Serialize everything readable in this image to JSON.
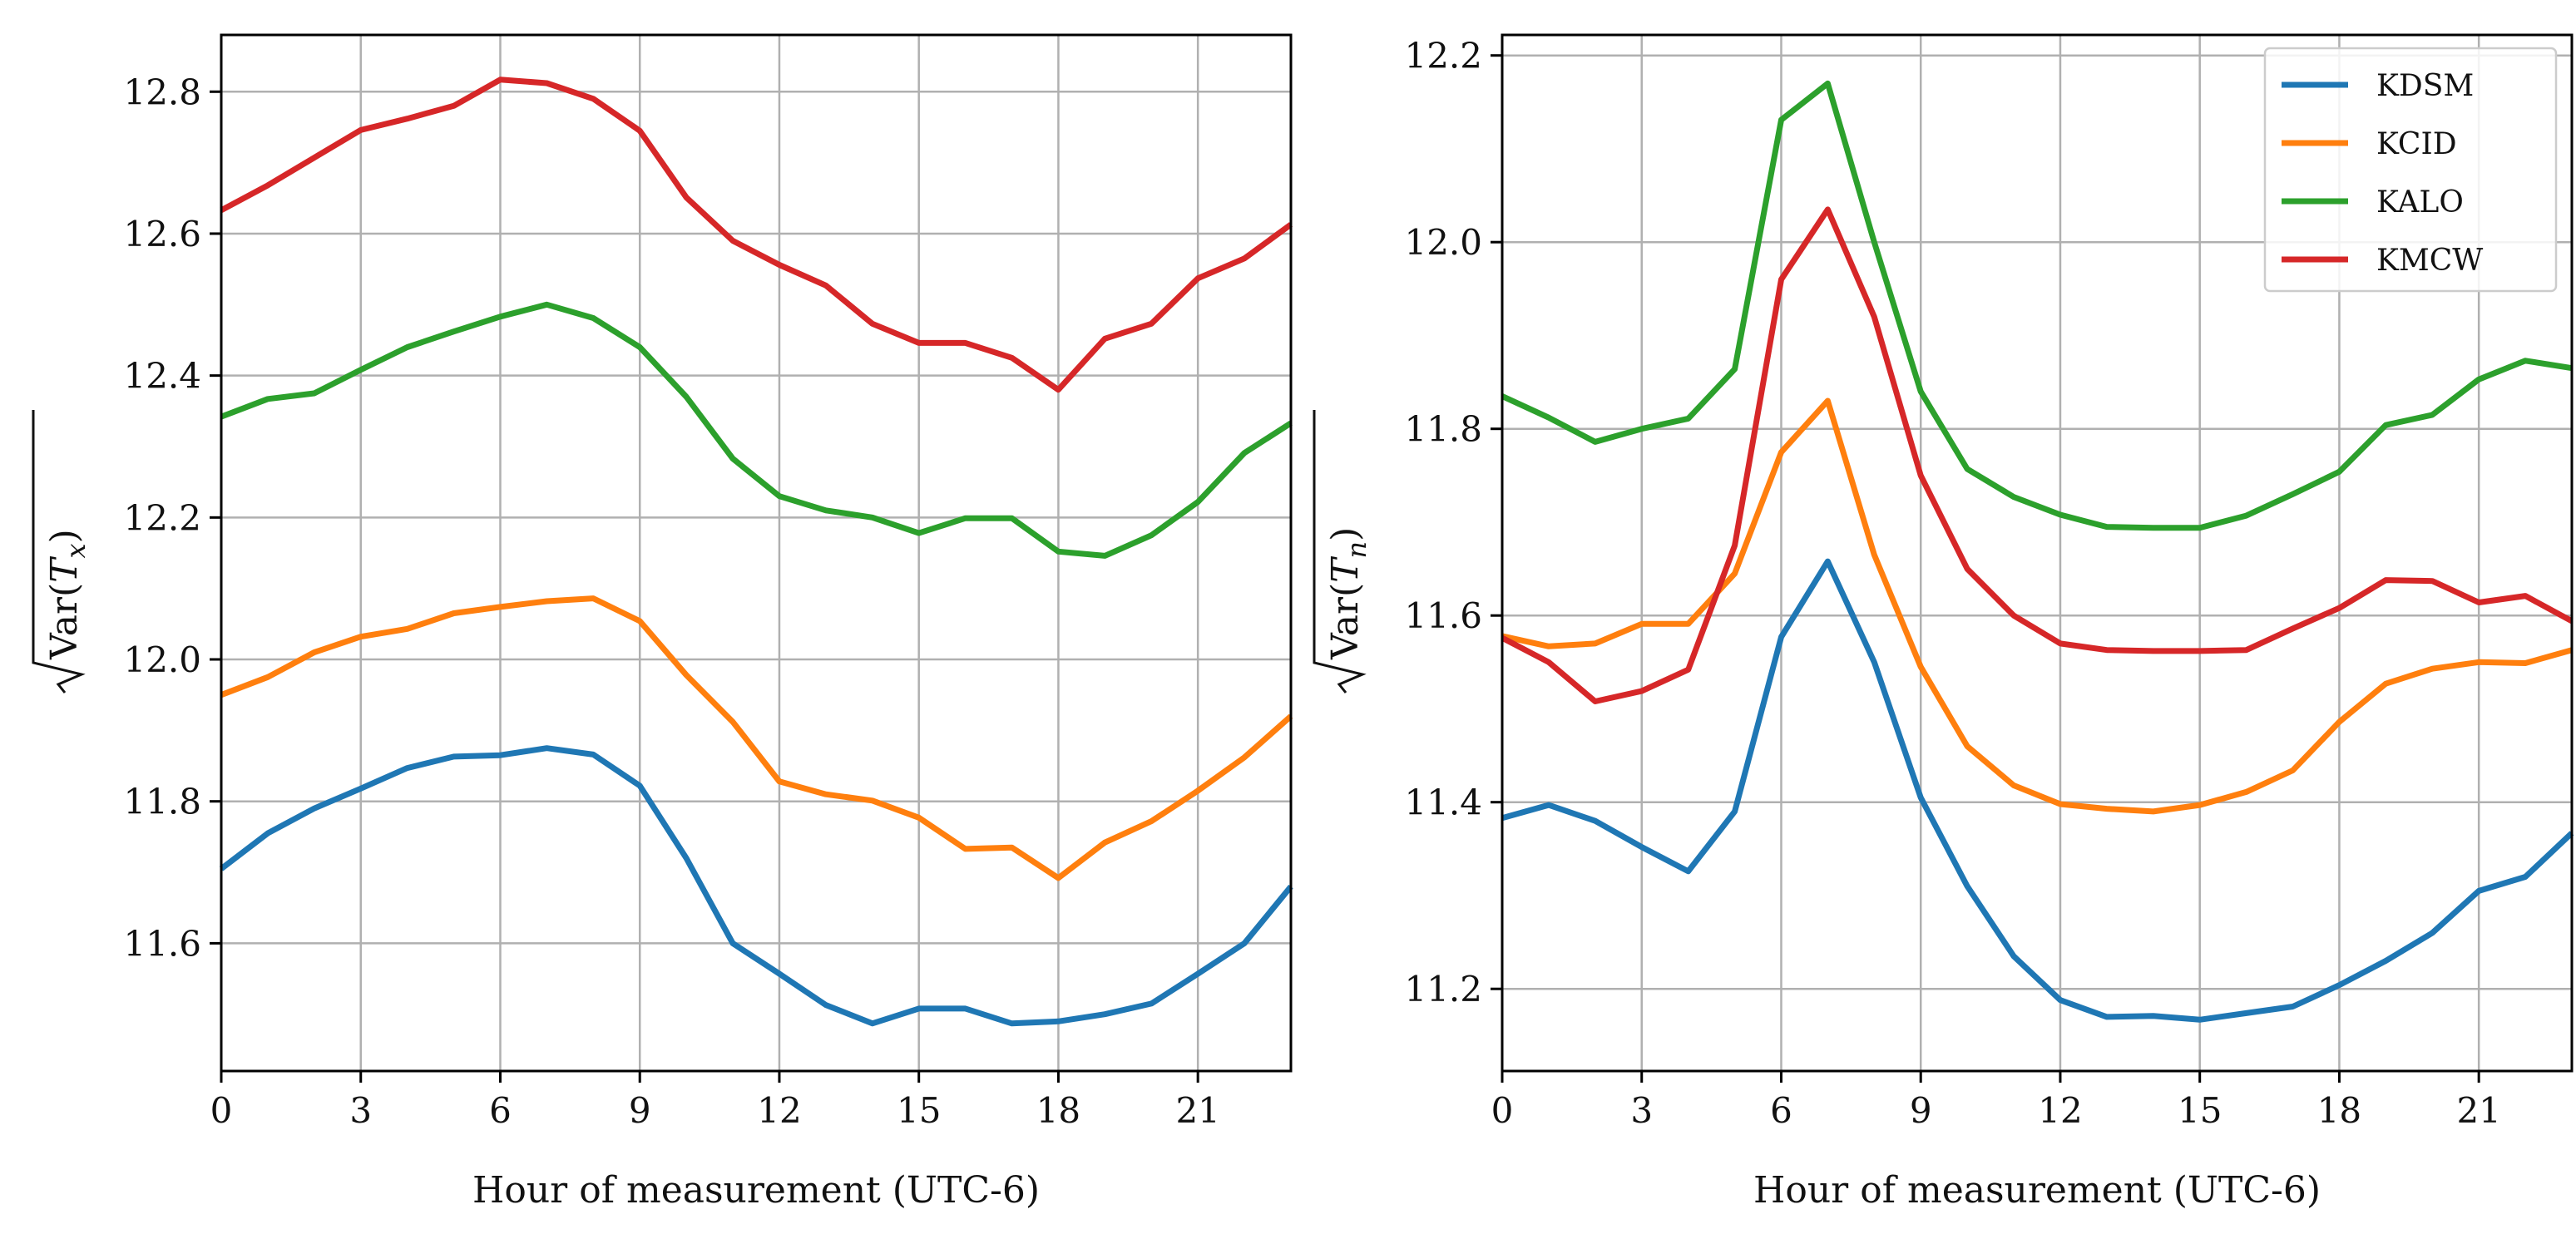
{
  "chart_data": [
    {
      "type": "line",
      "xlabel": "Hour of measurement (UTC-6)",
      "ylabel": {
        "radicand_prefix": "Var(",
        "var": "T",
        "sub": "x",
        "suffix": ")"
      },
      "xlim": [
        0,
        23
      ],
      "ylim": [
        11.42,
        12.88
      ],
      "xticks": [
        0,
        3,
        6,
        9,
        12,
        15,
        18,
        21
      ],
      "yticks": [
        11.6,
        11.8,
        12.0,
        12.2,
        12.4,
        12.6,
        12.8
      ],
      "ytick_labels": [
        "11.6",
        "11.8",
        "12.0",
        "12.2",
        "12.4",
        "12.6",
        "12.8"
      ],
      "grid": true,
      "x": [
        0,
        1,
        2,
        3,
        4,
        5,
        6,
        7,
        8,
        9,
        10,
        11,
        12,
        13,
        14,
        15,
        16,
        17,
        18,
        19,
        20,
        21,
        22,
        23
      ],
      "series": [
        {
          "color": "#1f77b4",
          "values": [
            11.705,
            11.755,
            11.79,
            11.818,
            11.847,
            11.863,
            11.865,
            11.875,
            11.866,
            11.822,
            11.72,
            11.6,
            11.557,
            11.513,
            11.487,
            11.508,
            11.508,
            11.487,
            11.49,
            11.5,
            11.515,
            11.557,
            11.6,
            11.68
          ]
        },
        {
          "color": "#ff7f0e",
          "values": [
            11.95,
            11.975,
            12.01,
            12.032,
            12.043,
            12.065,
            12.074,
            12.082,
            12.086,
            12.054,
            11.978,
            11.912,
            11.828,
            11.81,
            11.801,
            11.777,
            11.733,
            11.735,
            11.692,
            11.742,
            11.772,
            11.815,
            11.862,
            11.92
          ]
        },
        {
          "color": "#2ca02c",
          "values": [
            12.342,
            12.367,
            12.375,
            12.408,
            12.44,
            12.462,
            12.483,
            12.5,
            12.481,
            12.44,
            12.37,
            12.283,
            12.23,
            12.21,
            12.2,
            12.178,
            12.199,
            12.199,
            12.152,
            12.146,
            12.175,
            12.222,
            12.291,
            12.333
          ]
        },
        {
          "color": "#d62728",
          "values": [
            12.633,
            12.668,
            12.707,
            12.746,
            12.762,
            12.78,
            12.817,
            12.812,
            12.79,
            12.745,
            12.651,
            12.59,
            12.556,
            12.527,
            12.473,
            12.446,
            12.446,
            12.425,
            12.38,
            12.452,
            12.473,
            12.537,
            12.565,
            12.613
          ]
        }
      ]
    },
    {
      "type": "line",
      "xlabel": "Hour of measurement (UTC-6)",
      "ylabel": {
        "radicand_prefix": "Var(",
        "var": "T",
        "sub": "n",
        "suffix": ")"
      },
      "xlim": [
        0,
        23
      ],
      "ylim": [
        11.112,
        12.222
      ],
      "xticks": [
        0,
        3,
        6,
        9,
        12,
        15,
        18,
        21
      ],
      "yticks": [
        11.2,
        11.4,
        11.6,
        11.8,
        12.0,
        12.2
      ],
      "ytick_labels": [
        "11.2",
        "11.4",
        "11.6",
        "11.8",
        "12.0",
        "12.2"
      ],
      "grid": true,
      "legend_position": "top-right",
      "x": [
        0,
        1,
        2,
        3,
        4,
        5,
        6,
        7,
        8,
        9,
        10,
        11,
        12,
        13,
        14,
        15,
        16,
        17,
        18,
        19,
        20,
        21,
        22,
        23
      ],
      "series": [
        {
          "name": "KDSM",
          "color": "#1f77b4",
          "values": [
            11.383,
            11.397,
            11.38,
            11.352,
            11.326,
            11.39,
            11.577,
            11.658,
            11.55,
            11.405,
            11.31,
            11.235,
            11.188,
            11.17,
            11.171,
            11.167,
            11.174,
            11.181,
            11.204,
            11.23,
            11.26,
            11.305,
            11.32,
            11.367
          ]
        },
        {
          "name": "KCID",
          "color": "#ff7f0e",
          "values": [
            11.578,
            11.567,
            11.57,
            11.591,
            11.591,
            11.645,
            11.775,
            11.83,
            11.665,
            11.545,
            11.46,
            11.418,
            11.398,
            11.393,
            11.39,
            11.397,
            11.411,
            11.434,
            11.486,
            11.527,
            11.543,
            11.55,
            11.549,
            11.563
          ]
        },
        {
          "name": "KALO",
          "color": "#2ca02c",
          "values": [
            11.835,
            11.812,
            11.786,
            11.8,
            11.811,
            11.864,
            12.131,
            12.17,
            12.0,
            11.84,
            11.757,
            11.727,
            11.708,
            11.695,
            11.694,
            11.694,
            11.707,
            11.73,
            11.754,
            11.804,
            11.815,
            11.853,
            11.873,
            11.865
          ]
        },
        {
          "name": "KMCW",
          "color": "#d62728",
          "values": [
            11.576,
            11.55,
            11.508,
            11.519,
            11.542,
            11.675,
            11.96,
            12.035,
            11.92,
            11.75,
            11.65,
            11.6,
            11.57,
            11.563,
            11.562,
            11.562,
            11.563,
            11.586,
            11.608,
            11.638,
            11.637,
            11.614,
            11.621,
            11.594
          ]
        }
      ]
    }
  ]
}
